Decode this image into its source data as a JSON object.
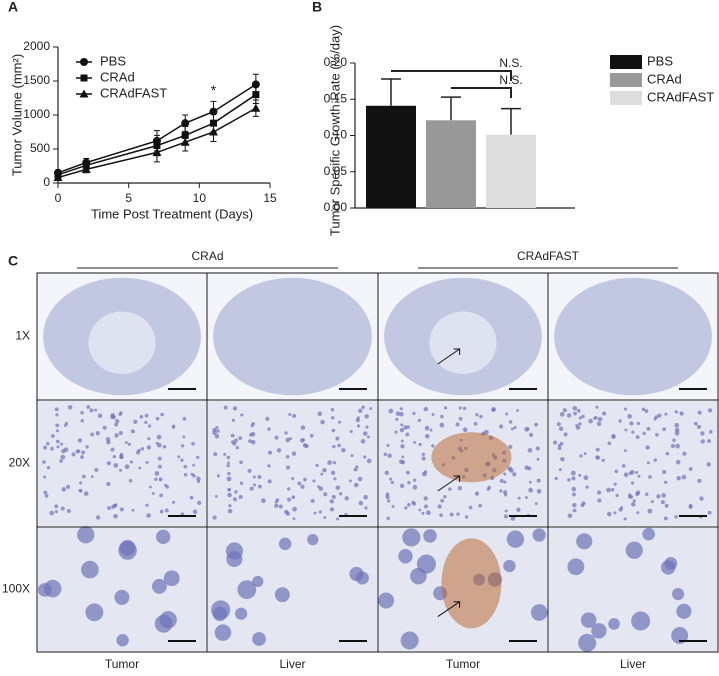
{
  "chart_data": [
    {
      "type": "line",
      "panel": "A",
      "xlabel": "Time Post Treatment (Days)",
      "ylabel": "Tumor Volume (mm²)",
      "x": [
        0,
        2,
        7,
        9,
        11,
        14
      ],
      "series": [
        {
          "name": "PBS",
          "color": "#111111",
          "marker": "circle",
          "values": [
            150,
            300,
            620,
            880,
            1050,
            1450
          ],
          "errors": [
            40,
            60,
            150,
            120,
            150,
            150
          ]
        },
        {
          "name": "CRAd",
          "color": "#111111",
          "marker": "square",
          "values": [
            120,
            260,
            550,
            700,
            880,
            1300
          ],
          "errors": [
            40,
            50,
            150,
            130,
            130,
            130
          ]
        },
        {
          "name": "CRAdFAST",
          "color": "#111111",
          "marker": "triangle",
          "values": [
            80,
            200,
            450,
            600,
            750,
            1100
          ],
          "errors": [
            30,
            50,
            140,
            130,
            140,
            120
          ]
        }
      ],
      "annotations": [
        {
          "text": "*",
          "x": 11
        }
      ],
      "xlim": [
        0,
        15
      ],
      "xticks": [
        0,
        5,
        10,
        15
      ],
      "ylim": [
        0,
        2000
      ],
      "yticks": [
        0,
        500,
        1000,
        1500,
        2000
      ],
      "legend": "upper-left"
    },
    {
      "type": "bar",
      "panel": "B",
      "ylabel": "Tumor Specific Growth Rate (%/day)",
      "categories": [
        "PBS",
        "CRAd",
        "CRAdFAST"
      ],
      "colors": [
        "#111111",
        "#999999",
        "#dddddd"
      ],
      "values": [
        0.141,
        0.121,
        0.101
      ],
      "errors": [
        0.037,
        0.032,
        0.036
      ],
      "annotations": [
        {
          "text": "N.S.",
          "from": 0,
          "to": 2
        },
        {
          "text": "N.S.",
          "from": 1,
          "to": 2
        }
      ],
      "ylim": [
        0,
        0.2
      ],
      "yticks": [
        {
          "value": 0,
          "label": "0.00"
        },
        0.05,
        {
          "value": 0.1,
          "label": "0.10"
        },
        0.15,
        {
          "value": 0.2,
          "label": "0.20"
        }
      ],
      "legend": "right"
    }
  ],
  "panel_c": {
    "label": "C",
    "groups": [
      "CRAd",
      "CRAdFAST"
    ],
    "rows": [
      "1X",
      "20X",
      "100X"
    ],
    "columns": [
      "Tumor",
      "Liver",
      "Tumor",
      "Liver"
    ]
  }
}
